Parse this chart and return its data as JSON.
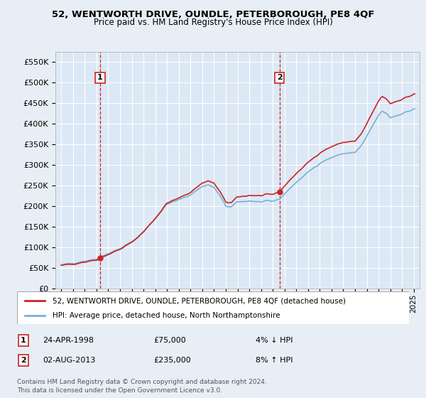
{
  "title": "52, WENTWORTH DRIVE, OUNDLE, PETERBOROUGH, PE8 4QF",
  "subtitle": "Price paid vs. HM Land Registry's House Price Index (HPI)",
  "background_color": "#e8eef5",
  "plot_bg_color": "#dce8f5",
  "grid_color": "#ffffff",
  "sale1_date": 1998.31,
  "sale1_price": 75000,
  "sale2_date": 2013.58,
  "sale2_price": 235000,
  "ylim": [
    0,
    575000
  ],
  "yticks": [
    0,
    50000,
    100000,
    150000,
    200000,
    250000,
    300000,
    350000,
    400000,
    450000,
    500000,
    550000
  ],
  "ytick_labels": [
    "£0",
    "£50K",
    "£100K",
    "£150K",
    "£200K",
    "£250K",
    "£300K",
    "£350K",
    "£400K",
    "£450K",
    "£500K",
    "£550K"
  ],
  "xlim_start": 1994.5,
  "xlim_end": 2025.5,
  "xticks": [
    1995,
    1996,
    1997,
    1998,
    1999,
    2000,
    2001,
    2002,
    2003,
    2004,
    2005,
    2006,
    2007,
    2008,
    2009,
    2010,
    2011,
    2012,
    2013,
    2014,
    2015,
    2016,
    2017,
    2018,
    2019,
    2020,
    2021,
    2022,
    2023,
    2024,
    2025
  ],
  "hpi_color": "#7ab0d4",
  "price_color": "#cc2222",
  "dashed_color": "#cc2222",
  "legend_label_price": "52, WENTWORTH DRIVE, OUNDLE, PETERBOROUGH, PE8 4QF (detached house)",
  "legend_label_hpi": "HPI: Average price, detached house, North Northamptonshire",
  "note1_label": "1",
  "note1_date": "24-APR-1998",
  "note1_price": "£75,000",
  "note1_hpi": "4% ↓ HPI",
  "note2_label": "2",
  "note2_date": "02-AUG-2013",
  "note2_price": "£235,000",
  "note2_hpi": "8% ↑ HPI",
  "footer": "Contains HM Land Registry data © Crown copyright and database right 2024.\nThis data is licensed under the Open Government Licence v3.0."
}
